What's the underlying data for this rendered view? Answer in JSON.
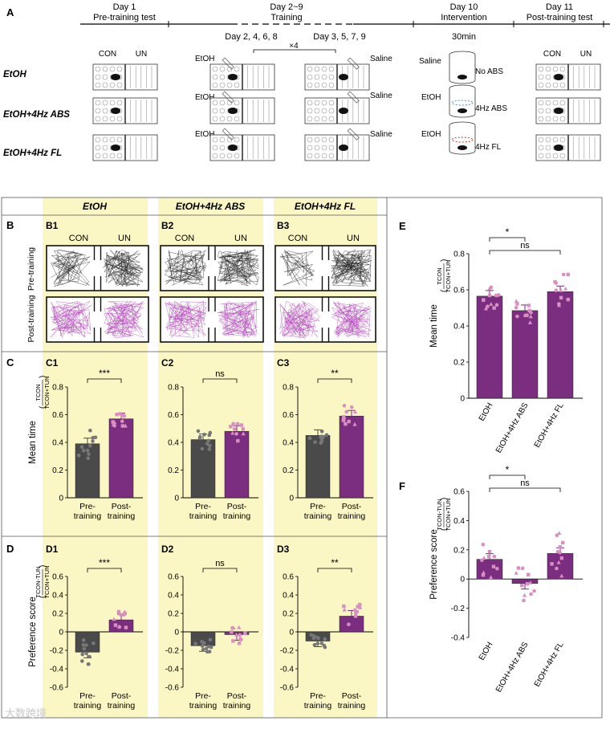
{
  "panel_a": {
    "label": "A",
    "timeline": [
      {
        "day": "Day 1",
        "phase": "Pre-training test"
      },
      {
        "day": "Day 2~9",
        "phase": "Training"
      },
      {
        "day": "Day 10",
        "phase": "Intervention"
      },
      {
        "day": "Day 11",
        "phase": "Post-training test"
      }
    ],
    "etoh_days": "Day 2, 4, 6, 8",
    "saline_days": "Day 3, 5, 7, 9",
    "repeat": "×4",
    "duration": "30min",
    "groups": [
      "EtOH",
      "EtOH+4Hz ABS",
      "EtOH+4Hz FL"
    ],
    "con": "CON",
    "un": "UN",
    "etoh_label": "EtOH",
    "saline_label": "Saline",
    "interventions": [
      "No ABS",
      "4Hz ABS",
      "4Hz FL"
    ],
    "intervention_drugs": [
      "Saline",
      "EtOH",
      "EtOH"
    ]
  },
  "panel_bcd": {
    "column_titles": [
      "EtOH",
      "EtOH+4Hz ABS",
      "EtOH+4Hz FL"
    ],
    "row_labels": [
      "B",
      "C",
      "D"
    ],
    "b_labels": [
      "B1",
      "B2",
      "B3"
    ],
    "c_labels": [
      "C1",
      "C2",
      "C3"
    ],
    "d_labels": [
      "D1",
      "D2",
      "D3"
    ],
    "con": "CON",
    "un": "UN",
    "pre_training": "Pre-training",
    "post_training": "Post-training",
    "xcat_top": [
      "Pre-",
      "Post-"
    ],
    "xcat_bottom": [
      "training",
      "training"
    ]
  },
  "labels": {
    "e": "E",
    "f": "F",
    "mean_time": "Mean time",
    "pref_score": "Preference score",
    "watermark": "大数跨境"
  },
  "colors": {
    "dark_bar": "#4a4a4a",
    "purple_bar": "#7b2d80",
    "pink_dot": "#d98fc2",
    "grey_dot": "#777777",
    "trace_black": "#222222",
    "trace_purple": "#b14bb8",
    "highlight": "#fbf7c4"
  },
  "chart_data": [
    {
      "id": "C1",
      "type": "bar",
      "categories": [
        "Pre-training",
        "Post-training"
      ],
      "values": [
        0.39,
        0.57
      ],
      "ylabel": "Mean time",
      "ylim": [
        0,
        0.8
      ],
      "yticks": [
        "0",
        "0.2",
        "0.4",
        "0.6",
        "0.8"
      ],
      "sig": "***"
    },
    {
      "id": "C2",
      "type": "bar",
      "categories": [
        "Pre-training",
        "Post-training"
      ],
      "values": [
        0.42,
        0.48
      ],
      "ylim": [
        0,
        0.8
      ],
      "yticks": [
        "0",
        "0.2",
        "0.4",
        "0.6",
        "0.8"
      ],
      "sig": "ns"
    },
    {
      "id": "C3",
      "type": "bar",
      "categories": [
        "Pre-training",
        "Post-training"
      ],
      "values": [
        0.45,
        0.59
      ],
      "ylim": [
        0,
        0.8
      ],
      "yticks": [
        "0",
        "0.2",
        "0.4",
        "0.6",
        "0.8"
      ],
      "sig": "**"
    },
    {
      "id": "D1",
      "type": "bar",
      "categories": [
        "Pre-training",
        "Post-training"
      ],
      "values": [
        -0.22,
        0.13
      ],
      "ylabel": "Preference score",
      "ylim": [
        -0.6,
        0.6
      ],
      "yticks": [
        "0.6",
        "0.4",
        "0.2",
        "0",
        "-0.2",
        "-0.4",
        "-0.6"
      ],
      "sig": "***"
    },
    {
      "id": "D2",
      "type": "bar",
      "categories": [
        "Pre-training",
        "Post-training"
      ],
      "values": [
        -0.15,
        -0.03
      ],
      "ylim": [
        -0.6,
        0.6
      ],
      "yticks": [
        "0.6",
        "0.4",
        "0.2",
        "0",
        "-0.2",
        "-0.4",
        "-0.6"
      ],
      "sig": "ns"
    },
    {
      "id": "D3",
      "type": "bar",
      "categories": [
        "Pre-training",
        "Post-training"
      ],
      "values": [
        -0.1,
        0.17
      ],
      "ylim": [
        -0.6,
        0.6
      ],
      "yticks": [
        "0.6",
        "0.4",
        "0.2",
        "0",
        "-0.2",
        "-0.4",
        "-0.6"
      ],
      "sig": "**"
    },
    {
      "id": "E",
      "type": "bar",
      "categories": [
        "EtOH",
        "EtOH+4Hz ABS",
        "EtOH+4Hz FL"
      ],
      "values": [
        0.565,
        0.485,
        0.59
      ],
      "ylabel": "Mean time",
      "ylim": [
        0,
        0.8
      ],
      "yticks": [
        "0",
        "0.2",
        "0.4",
        "0.6",
        "0.8"
      ],
      "sig": [
        "*",
        "ns"
      ]
    },
    {
      "id": "F",
      "type": "bar",
      "categories": [
        "EtOH",
        "EtOH+4Hz ABS",
        "EtOH+4Hz FL"
      ],
      "values": [
        0.135,
        -0.03,
        0.175
      ],
      "ylabel": "Preference score",
      "ylim": [
        -0.4,
        0.6
      ],
      "yticks": [
        "0.6",
        "0.4",
        "0.2",
        "0",
        "-0.2",
        "-0.4"
      ],
      "sig": [
        "*",
        "ns"
      ]
    }
  ]
}
